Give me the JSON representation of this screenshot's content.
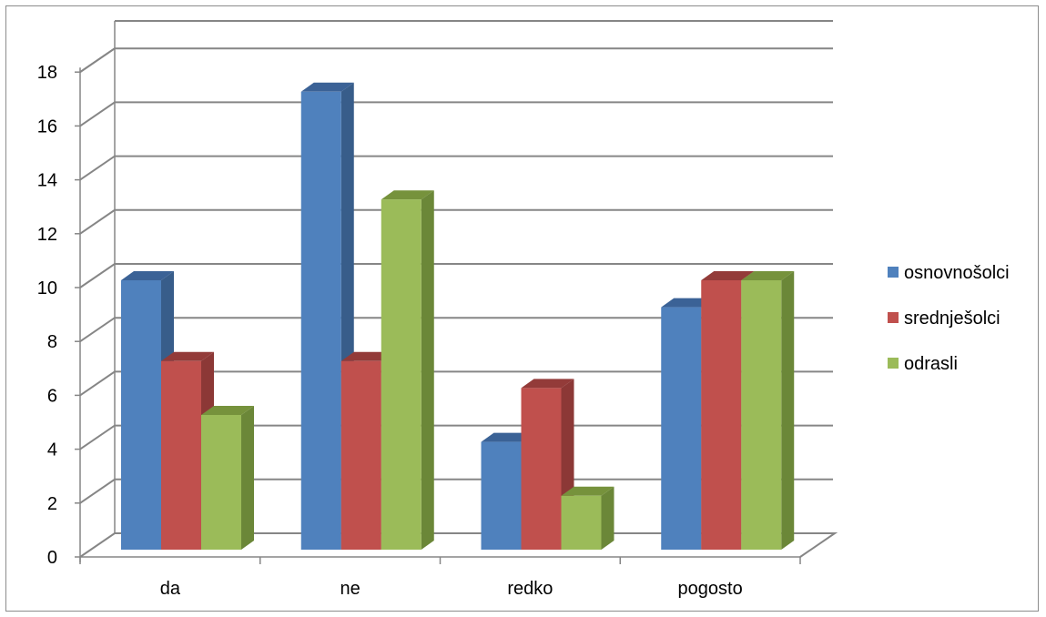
{
  "chart_data": {
    "type": "bar",
    "style": "3d-clustered-column",
    "categories": [
      "da",
      "ne",
      "redko",
      "pogosto"
    ],
    "series": [
      {
        "name": "osnovnošolci",
        "values": [
          10,
          17,
          4,
          9
        ],
        "color": "#4F81BD",
        "side_color": "#385D8A",
        "top_color": "#3B6296"
      },
      {
        "name": "srednješolci",
        "values": [
          7,
          7,
          6,
          10
        ],
        "color": "#C0504D",
        "side_color": "#8C3836",
        "top_color": "#933B39"
      },
      {
        "name": "odrasli",
        "values": [
          5,
          13,
          2,
          10
        ],
        "color": "#9BBB59",
        "side_color": "#6B8738",
        "top_color": "#76923C"
      }
    ],
    "y_ticks": [
      0,
      2,
      4,
      6,
      8,
      10,
      12,
      14,
      16,
      18
    ],
    "ylim": [
      0,
      18
    ],
    "grid": true,
    "legend_position": "right",
    "title": "",
    "xlabel": "",
    "ylabel": ""
  }
}
